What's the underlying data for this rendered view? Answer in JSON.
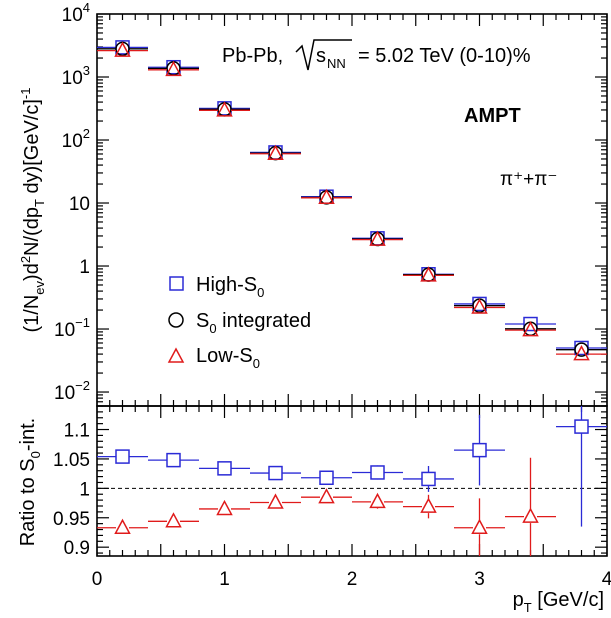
{
  "chart_data": [
    {
      "type": "scatter",
      "panel": "spectra",
      "ylabel": "(1/N_ev)d²N/(dp_T dy)[GeV/c]⁻¹",
      "yscale": "log",
      "ylim": [
        0.006,
        10000
      ],
      "xlim": [
        0,
        4
      ],
      "annotations": {
        "system": "Pb-Pb,",
        "energy": "= 5.02 TeV (0-10)%",
        "model": "AMPT",
        "particle": "π⁺+π⁻"
      },
      "legend": {
        "placement": "middle-left",
        "entries": [
          "High-S0",
          "S0 integrated",
          "Low-S0"
        ]
      },
      "x": [
        0.2,
        0.6,
        1.0,
        1.4,
        1.8,
        2.2,
        2.6,
        3.0,
        3.4,
        3.8
      ],
      "x_bin_halfwidth": 0.2,
      "series": [
        {
          "name": "High-S0",
          "marker": "open-square",
          "color": "#2b2bd6",
          "values": [
            2950,
            1430,
            318,
            63.5,
            12.6,
            2.75,
            0.74,
            0.25,
            0.12,
            0.05
          ]
        },
        {
          "name": "S0 integrated",
          "marker": "open-circle",
          "color": "#000000",
          "values": [
            2800,
            1370,
            307,
            62,
            12.3,
            2.68,
            0.73,
            0.235,
            0.101,
            0.047
          ]
        },
        {
          "name": "Low-S0",
          "marker": "open-triangle",
          "color": "#e01b1b",
          "values": [
            2620,
            1300,
            296,
            60.5,
            12.1,
            2.62,
            0.71,
            0.22,
            0.096,
            0.04
          ]
        }
      ],
      "ticks": {
        "y_major": [
          {
            "v": 0.01,
            "base": "10",
            "exp": "−2"
          },
          {
            "v": 0.1,
            "base": "10",
            "exp": "−1"
          },
          {
            "v": 1,
            "base": "1",
            "exp": ""
          },
          {
            "v": 10,
            "base": "10",
            "exp": ""
          },
          {
            "v": 100,
            "base": "10",
            "exp": "2"
          },
          {
            "v": 1000,
            "base": "10",
            "exp": "3"
          },
          {
            "v": 10000,
            "base": "10",
            "exp": "4"
          }
        ]
      }
    },
    {
      "type": "scatter",
      "panel": "ratio",
      "ylabel": "Ratio to S0-int.",
      "xlabel": "p_T [GeV/c]",
      "xlim": [
        0,
        4
      ],
      "ylim": [
        0.885,
        1.14
      ],
      "reference_line": 1.0,
      "x": [
        0.2,
        0.6,
        1.0,
        1.4,
        1.8,
        2.2,
        2.6,
        3.0,
        3.4,
        3.8
      ],
      "series": [
        {
          "name": "High-S0",
          "marker": "open-square",
          "color": "#2b2bd6",
          "values": [
            1.054,
            1.048,
            1.034,
            1.026,
            1.018,
            1.027,
            1.016,
            1.065,
            null,
            1.105
          ],
          "errors": [
            0.002,
            0.002,
            0.003,
            0.004,
            0.006,
            0.012,
            0.022,
            0.06,
            null,
            0.17
          ]
        },
        {
          "name": "Low-S0",
          "marker": "open-triangle",
          "color": "#e01b1b",
          "values": [
            0.933,
            0.944,
            0.965,
            0.976,
            0.985,
            0.977,
            0.969,
            0.933,
            0.952,
            null
          ],
          "errors": [
            0.002,
            0.003,
            0.003,
            0.004,
            0.006,
            0.012,
            0.02,
            0.05,
            0.1,
            null
          ]
        }
      ],
      "ticks": {
        "y_major": [
          0.9,
          0.95,
          1.0,
          1.05,
          1.1
        ],
        "y_labels": [
          "0.9",
          "0.95",
          "1",
          "1.05",
          "1.1"
        ],
        "x_major": [
          0,
          1,
          2,
          3,
          4
        ],
        "x_labels": [
          "0",
          "1",
          "2",
          "3",
          "4"
        ]
      }
    }
  ]
}
